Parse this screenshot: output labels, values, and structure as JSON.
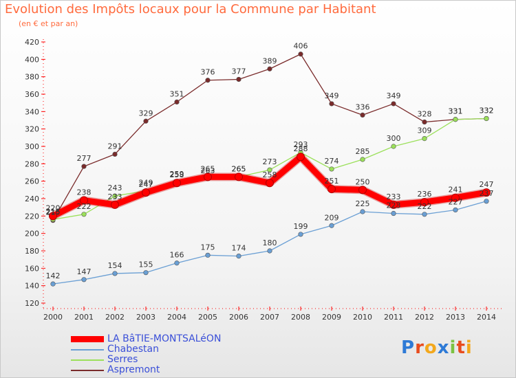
{
  "chart_data": {
    "type": "line",
    "title": "Evolution des Impôts locaux pour la Commune par Habitant",
    "subtitle": "(en € et par an)",
    "xlabel": "",
    "ylabel": "",
    "x": [
      "2000",
      "2001",
      "2002",
      "2003",
      "2004",
      "2005",
      "2006",
      "2007",
      "2008",
      "2009",
      "2010",
      "2011",
      "2012",
      "2013",
      "2014"
    ],
    "ylim": [
      120,
      420
    ],
    "yticks": [
      120,
      140,
      160,
      180,
      200,
      220,
      240,
      260,
      280,
      300,
      320,
      340,
      360,
      380,
      400,
      420
    ],
    "grid": false,
    "legend_position": "bottom-left",
    "series": [
      {
        "name": "Aspremont",
        "color": "#7a2b2b",
        "values": [
          215,
          277,
          291,
          329,
          351,
          376,
          377,
          389,
          406,
          349,
          336,
          349,
          328,
          331,
          332
        ]
      },
      {
        "name": "Serres",
        "color": "#9be05a",
        "values": [
          216,
          222,
          243,
          249,
          259,
          263,
          265,
          273,
          293,
          274,
          285,
          300,
          309,
          331,
          332
        ]
      },
      {
        "name": "Chabestan",
        "color": "#6a9fd4",
        "values": [
          142,
          147,
          154,
          155,
          166,
          175,
          174,
          180,
          199,
          209,
          225,
          223,
          222,
          227,
          237
        ]
      },
      {
        "name": "LA BâTIE-MONTSALéON",
        "color": "#ff0000",
        "values": [
          220,
          238,
          233,
          247,
          258,
          265,
          265,
          258,
          288,
          251,
          250,
          233,
          236,
          241,
          247
        ]
      }
    ],
    "legend": [
      "LA BâTIE-MONTSALéON",
      "Chabestan",
      "Serres",
      "Aspremont"
    ]
  },
  "logo": {
    "letters": [
      "P",
      "r",
      "o",
      "x",
      "i",
      "t",
      "i"
    ],
    "colors": [
      "#2e7ad6",
      "#e84c1e",
      "#f3a81c",
      "#2e7ad6",
      "#7cc242",
      "#e84c1e",
      "#f3a81c"
    ]
  }
}
